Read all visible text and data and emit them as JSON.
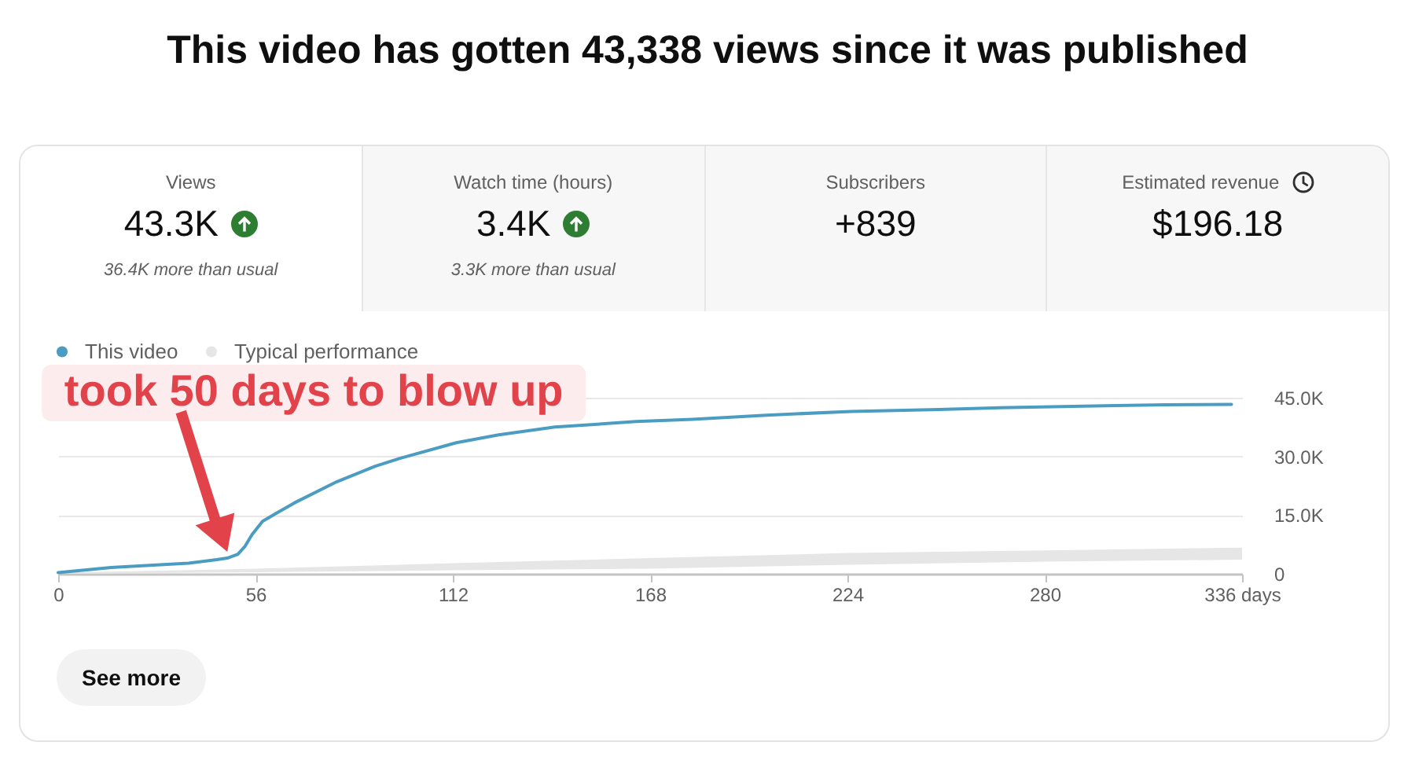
{
  "chart_data": [
    {
      "type": "other",
      "title": "This video has gotten 43,338 views since it was published"
    },
    {
      "type": "other",
      "title": "Views",
      "annotations": [
        "43.3K",
        "36.4K more than usual"
      ]
    },
    {
      "type": "other",
      "title": "Watch time (hours)",
      "annotations": [
        "3.4K",
        "3.3K more than usual"
      ]
    },
    {
      "type": "other",
      "title": "Subscribers",
      "annotations": [
        "+839"
      ]
    },
    {
      "type": "other",
      "title": "Estimated revenue",
      "annotations": [
        "$196.18"
      ]
    },
    {
      "type": "line",
      "xlim": [
        0,
        336
      ],
      "xticks": [
        0,
        56,
        112,
        168,
        224,
        280,
        {
          "value": 336,
          "label": "336 days"
        }
      ],
      "ylim": [
        0,
        45000
      ],
      "yticks": [
        0,
        {
          "value": 15000,
          "label": "15.0K"
        },
        {
          "value": 30000,
          "label": "30.0K"
        },
        {
          "value": 45000,
          "label": "45.0K"
        }
      ],
      "grid": "y",
      "legend": "top left",
      "marker": "none",
      "line_style": "solid",
      "series": [
        {
          "name": "This video",
          "color": "#4b9cc2",
          "x": [
            0,
            15,
            37,
            45,
            48,
            51,
            53,
            55,
            58,
            62,
            67,
            79,
            90,
            97,
            113,
            125,
            141,
            164,
            180,
            200,
            225,
            250,
            270,
            300,
            314,
            333
          ],
          "values": [
            300,
            1600,
            2700,
            3600,
            4000,
            5000,
            7000,
            10000,
            13400,
            15500,
            18100,
            23500,
            27500,
            29500,
            33500,
            35500,
            37500,
            38900,
            39500,
            40500,
            41500,
            42000,
            42500,
            43000,
            43200,
            43300
          ]
        },
        {
          "name": "Typical performance",
          "type": "area",
          "color": "#e6e6e6",
          "x": [
            0,
            56,
            112,
            168,
            224,
            280,
            336
          ],
          "values": [
            null,
            null,
            null,
            null,
            null,
            null,
            null
          ],
          "lower": [
            0,
            400,
            900,
            1300,
            2300,
            3100,
            3600
          ],
          "upper": [
            300,
            1300,
            2700,
            4000,
            5300,
            6000,
            6700
          ]
        }
      ],
      "annotations": [
        "took 50 days to blow up",
        "See more"
      ]
    }
  ]
}
